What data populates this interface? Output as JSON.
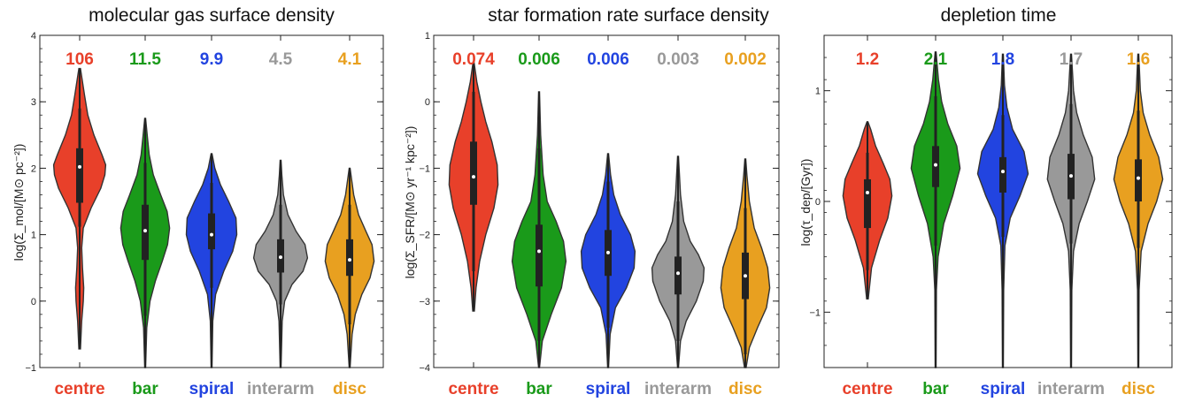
{
  "chart_data": [
    {
      "type": "violin",
      "title": "molecular gas surface density",
      "ylabel": "log(Σ_mol/[M⊙ pc⁻²])",
      "ylim": [
        -1,
        4
      ],
      "yticks": [
        -1,
        0,
        1,
        2,
        3,
        4
      ],
      "categories": [
        "centre",
        "bar",
        "spiral",
        "interarm",
        "disc"
      ],
      "colors": [
        "#e8402a",
        "#1a9a1a",
        "#2244e0",
        "#999999",
        "#e8a020"
      ],
      "stat_labels": [
        "106",
        "11.5",
        "9.9",
        "4.5",
        "4.1"
      ],
      "violins": [
        {
          "median": 2.02,
          "q1": 1.48,
          "q3": 2.3,
          "wlo": 1.12,
          "whi": 2.9,
          "min": -0.72,
          "max": 3.5,
          "shape": [
            [
              -0.72,
              0.02
            ],
            [
              -0.3,
              0.05
            ],
            [
              0.0,
              0.09
            ],
            [
              0.2,
              0.1
            ],
            [
              0.5,
              0.07
            ],
            [
              0.8,
              0.05
            ],
            [
              1.1,
              0.09
            ],
            [
              1.4,
              0.28
            ],
            [
              1.7,
              0.52
            ],
            [
              1.9,
              0.62
            ],
            [
              2.05,
              0.64
            ],
            [
              2.2,
              0.55
            ],
            [
              2.5,
              0.35
            ],
            [
              2.8,
              0.2
            ],
            [
              3.1,
              0.12
            ],
            [
              3.5,
              0.02
            ]
          ]
        },
        {
          "median": 1.06,
          "q1": 0.62,
          "q3": 1.45,
          "wlo": -0.22,
          "whi": 2.08,
          "min": -1.0,
          "max": 2.75,
          "shape": [
            [
              -1.0,
              0.01
            ],
            [
              -0.4,
              0.04
            ],
            [
              0.0,
              0.12
            ],
            [
              0.3,
              0.25
            ],
            [
              0.6,
              0.42
            ],
            [
              0.85,
              0.55
            ],
            [
              1.1,
              0.6
            ],
            [
              1.35,
              0.54
            ],
            [
              1.6,
              0.38
            ],
            [
              1.9,
              0.2
            ],
            [
              2.2,
              0.1
            ],
            [
              2.5,
              0.05
            ],
            [
              2.75,
              0.01
            ]
          ]
        },
        {
          "median": 1.0,
          "q1": 0.78,
          "q3": 1.32,
          "wlo": 0.2,
          "whi": 1.78,
          "min": -1.0,
          "max": 2.22,
          "shape": [
            [
              -1.0,
              0.01
            ],
            [
              -0.3,
              0.03
            ],
            [
              0.1,
              0.1
            ],
            [
              0.45,
              0.3
            ],
            [
              0.75,
              0.52
            ],
            [
              1.0,
              0.62
            ],
            [
              1.25,
              0.6
            ],
            [
              1.5,
              0.42
            ],
            [
              1.75,
              0.22
            ],
            [
              2.0,
              0.08
            ],
            [
              2.22,
              0.01
            ]
          ]
        },
        {
          "median": 0.66,
          "q1": 0.43,
          "q3": 0.93,
          "wlo": -0.05,
          "whi": 1.45,
          "min": -1.0,
          "max": 2.12,
          "shape": [
            [
              -1.0,
              0.01
            ],
            [
              -0.3,
              0.04
            ],
            [
              0.0,
              0.1
            ],
            [
              0.25,
              0.28
            ],
            [
              0.45,
              0.55
            ],
            [
              0.65,
              0.66
            ],
            [
              0.85,
              0.6
            ],
            [
              1.05,
              0.38
            ],
            [
              1.3,
              0.18
            ],
            [
              1.6,
              0.07
            ],
            [
              1.9,
              0.03
            ],
            [
              2.12,
              0.01
            ]
          ]
        },
        {
          "median": 0.62,
          "q1": 0.38,
          "q3": 0.93,
          "wlo": -0.35,
          "whi": 1.45,
          "min": -1.0,
          "max": 2.0,
          "shape": [
            [
              -1.0,
              0.01
            ],
            [
              -0.5,
              0.06
            ],
            [
              -0.2,
              0.14
            ],
            [
              0.1,
              0.3
            ],
            [
              0.35,
              0.5
            ],
            [
              0.6,
              0.6
            ],
            [
              0.85,
              0.55
            ],
            [
              1.05,
              0.4
            ],
            [
              1.3,
              0.22
            ],
            [
              1.6,
              0.1
            ],
            [
              2.0,
              0.01
            ]
          ]
        }
      ]
    },
    {
      "type": "violin",
      "title": "star formation rate surface density",
      "ylabel": "log(Σ_SFR/[M⊙ yr⁻¹ kpc⁻²])",
      "ylim": [
        -4,
        1
      ],
      "yticks": [
        -4,
        -3,
        -2,
        -1,
        0,
        1
      ],
      "categories": [
        "centre",
        "bar",
        "spiral",
        "interarm",
        "disc"
      ],
      "colors": [
        "#e8402a",
        "#1a9a1a",
        "#2244e0",
        "#999999",
        "#e8a020"
      ],
      "stat_labels": [
        "0.074",
        "0.006",
        "0.006",
        "0.003",
        "0.002"
      ],
      "violins": [
        {
          "median": -1.13,
          "q1": -1.55,
          "q3": -0.6,
          "wlo": -2.55,
          "whi": 0.15,
          "min": -3.15,
          "max": 0.6,
          "shape": [
            [
              -3.15,
              0.02
            ],
            [
              -2.8,
              0.06
            ],
            [
              -2.4,
              0.15
            ],
            [
              -2.0,
              0.3
            ],
            [
              -1.6,
              0.5
            ],
            [
              -1.25,
              0.6
            ],
            [
              -0.95,
              0.58
            ],
            [
              -0.6,
              0.45
            ],
            [
              -0.3,
              0.3
            ],
            [
              0.0,
              0.18
            ],
            [
              0.3,
              0.08
            ],
            [
              0.6,
              0.01
            ]
          ]
        },
        {
          "median": -2.25,
          "q1": -2.78,
          "q3": -1.85,
          "wlo": -3.6,
          "whi": -0.7,
          "min": -4.0,
          "max": 0.15,
          "shape": [
            [
              -4.0,
              0.01
            ],
            [
              -3.6,
              0.08
            ],
            [
              -3.2,
              0.3
            ],
            [
              -2.8,
              0.55
            ],
            [
              -2.4,
              0.66
            ],
            [
              -2.1,
              0.6
            ],
            [
              -1.8,
              0.42
            ],
            [
              -1.5,
              0.2
            ],
            [
              -1.1,
              0.1
            ],
            [
              -0.5,
              0.04
            ],
            [
              0.15,
              0.01
            ]
          ]
        },
        {
          "median": -2.27,
          "q1": -2.62,
          "q3": -1.93,
          "wlo": -3.4,
          "whi": -1.2,
          "min": -4.0,
          "max": -0.78,
          "shape": [
            [
              -4.0,
              0.01
            ],
            [
              -3.5,
              0.05
            ],
            [
              -3.1,
              0.18
            ],
            [
              -2.8,
              0.45
            ],
            [
              -2.5,
              0.64
            ],
            [
              -2.25,
              0.66
            ],
            [
              -2.0,
              0.55
            ],
            [
              -1.7,
              0.3
            ],
            [
              -1.4,
              0.14
            ],
            [
              -1.1,
              0.06
            ],
            [
              -0.78,
              0.01
            ]
          ]
        },
        {
          "median": -2.58,
          "q1": -2.9,
          "q3": -2.33,
          "wlo": -3.6,
          "whi": -1.5,
          "min": -4.0,
          "max": -0.82,
          "shape": [
            [
              -4.0,
              0.01
            ],
            [
              -3.6,
              0.06
            ],
            [
              -3.3,
              0.2
            ],
            [
              -3.0,
              0.45
            ],
            [
              -2.7,
              0.62
            ],
            [
              -2.5,
              0.64
            ],
            [
              -2.3,
              0.5
            ],
            [
              -2.1,
              0.3
            ],
            [
              -1.8,
              0.14
            ],
            [
              -1.4,
              0.06
            ],
            [
              -0.82,
              0.01
            ]
          ]
        },
        {
          "median": -2.62,
          "q1": -2.97,
          "q3": -2.27,
          "wlo": -3.8,
          "whi": -1.6,
          "min": -4.0,
          "max": -0.86,
          "shape": [
            [
              -4.0,
              0.02
            ],
            [
              -3.7,
              0.1
            ],
            [
              -3.4,
              0.3
            ],
            [
              -3.1,
              0.52
            ],
            [
              -2.8,
              0.6
            ],
            [
              -2.5,
              0.55
            ],
            [
              -2.2,
              0.4
            ],
            [
              -1.9,
              0.22
            ],
            [
              -1.5,
              0.1
            ],
            [
              -1.1,
              0.04
            ],
            [
              -0.86,
              0.01
            ]
          ]
        }
      ]
    },
    {
      "type": "violin",
      "title": "depletion time",
      "ylabel": "log(τ_dep/[Gyr])",
      "ylim": [
        -1.5,
        1.5
      ],
      "yticks": [
        -1,
        0,
        1
      ],
      "categories": [
        "centre",
        "bar",
        "spiral",
        "interarm",
        "disc"
      ],
      "colors": [
        "#e8402a",
        "#1a9a1a",
        "#2244e0",
        "#999999",
        "#e8a020"
      ],
      "stat_labels": [
        "1.2",
        "2.1",
        "1.8",
        "1.7",
        "1.6"
      ],
      "violins": [
        {
          "median": 0.08,
          "q1": -0.24,
          "q3": 0.2,
          "wlo": -0.62,
          "whi": 0.44,
          "min": -0.88,
          "max": 0.72,
          "shape": [
            [
              -0.88,
              0.02
            ],
            [
              -0.6,
              0.1
            ],
            [
              -0.35,
              0.3
            ],
            [
              -0.15,
              0.5
            ],
            [
              0.05,
              0.6
            ],
            [
              0.2,
              0.55
            ],
            [
              0.35,
              0.38
            ],
            [
              0.5,
              0.2
            ],
            [
              0.65,
              0.08
            ],
            [
              0.72,
              0.01
            ]
          ]
        },
        {
          "median": 0.33,
          "q1": 0.13,
          "q3": 0.5,
          "wlo": -0.4,
          "whi": 0.95,
          "min": -1.5,
          "max": 1.35,
          "shape": [
            [
              -1.5,
              0.01
            ],
            [
              -0.8,
              0.02
            ],
            [
              -0.5,
              0.06
            ],
            [
              -0.2,
              0.2
            ],
            [
              0.05,
              0.42
            ],
            [
              0.3,
              0.6
            ],
            [
              0.5,
              0.52
            ],
            [
              0.7,
              0.3
            ],
            [
              0.9,
              0.15
            ],
            [
              1.1,
              0.07
            ],
            [
              1.35,
              0.01
            ]
          ]
        },
        {
          "median": 0.27,
          "q1": 0.08,
          "q3": 0.4,
          "wlo": -0.32,
          "whi": 0.78,
          "min": -1.5,
          "max": 1.33,
          "shape": [
            [
              -1.5,
              0.01
            ],
            [
              -0.8,
              0.02
            ],
            [
              -0.4,
              0.05
            ],
            [
              -0.15,
              0.18
            ],
            [
              0.05,
              0.42
            ],
            [
              0.25,
              0.62
            ],
            [
              0.45,
              0.52
            ],
            [
              0.65,
              0.24
            ],
            [
              0.85,
              0.1
            ],
            [
              1.05,
              0.04
            ],
            [
              1.33,
              0.01
            ]
          ]
        },
        {
          "median": 0.23,
          "q1": 0.02,
          "q3": 0.43,
          "wlo": -0.38,
          "whi": 0.88,
          "min": -1.5,
          "max": 1.33,
          "shape": [
            [
              -1.5,
              0.01
            ],
            [
              -0.8,
              0.02
            ],
            [
              -0.45,
              0.06
            ],
            [
              -0.2,
              0.2
            ],
            [
              0.0,
              0.4
            ],
            [
              0.2,
              0.58
            ],
            [
              0.4,
              0.52
            ],
            [
              0.6,
              0.3
            ],
            [
              0.8,
              0.14
            ],
            [
              1.0,
              0.06
            ],
            [
              1.33,
              0.01
            ]
          ]
        },
        {
          "median": 0.21,
          "q1": 0.0,
          "q3": 0.38,
          "wlo": -0.42,
          "whi": 0.82,
          "min": -1.5,
          "max": 1.33,
          "shape": [
            [
              -1.5,
              0.01
            ],
            [
              -0.8,
              0.02
            ],
            [
              -0.45,
              0.07
            ],
            [
              -0.2,
              0.24
            ],
            [
              0.0,
              0.45
            ],
            [
              0.2,
              0.6
            ],
            [
              0.4,
              0.5
            ],
            [
              0.6,
              0.28
            ],
            [
              0.8,
              0.12
            ],
            [
              1.0,
              0.05
            ],
            [
              1.33,
              0.01
            ]
          ]
        }
      ]
    }
  ]
}
